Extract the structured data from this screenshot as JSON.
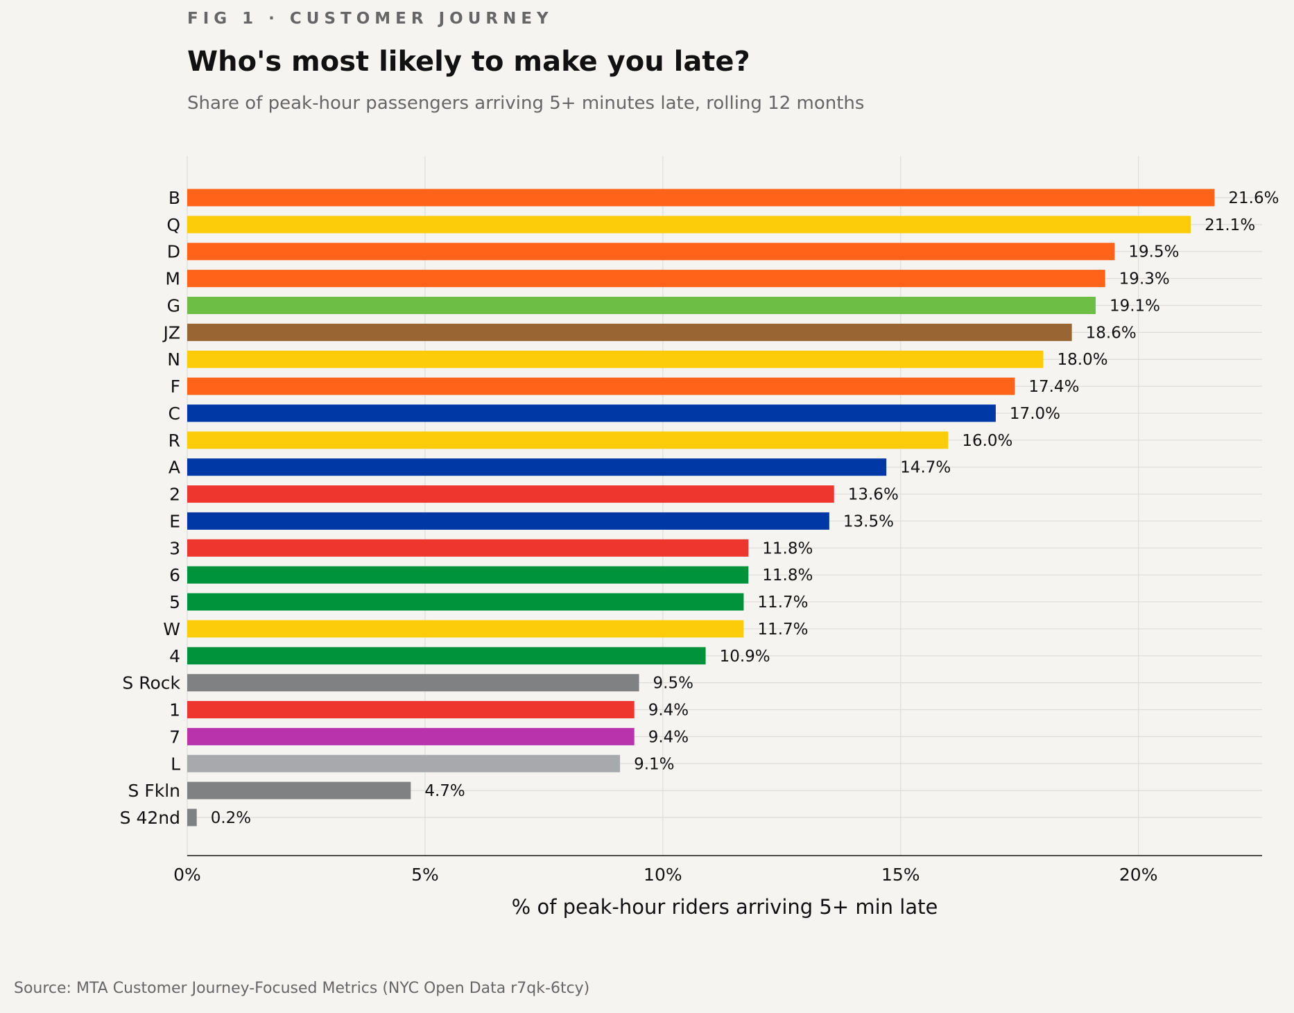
{
  "header": {
    "kicker": "FIG 1 · CUSTOMER JOURNEY",
    "title": "Who's most likely to make you late?",
    "subtitle": "Share of peak-hour passengers arriving 5+ minutes late, rolling 12 months"
  },
  "footer": {
    "source": "Source: MTA Customer Journey-Focused Metrics (NYC Open Data r7qk-6tcy)"
  },
  "chart_data": {
    "type": "bar",
    "orientation": "horizontal",
    "title": "Who's most likely to make you late?",
    "subtitle": "Share of peak-hour passengers arriving 5+ minutes late, rolling 12 months",
    "xlabel": "% of peak-hour riders arriving 5+ min late",
    "ylabel": "",
    "xlim": [
      0,
      22.6
    ],
    "x_ticks": [
      0,
      5,
      10,
      15,
      20
    ],
    "x_tick_labels": [
      "0%",
      "5%",
      "10%",
      "15%",
      "20%"
    ],
    "grid": "on",
    "categories": [
      "B",
      "Q",
      "D",
      "M",
      "G",
      "JZ",
      "N",
      "F",
      "C",
      "R",
      "A",
      "2",
      "E",
      "3",
      "6",
      "5",
      "W",
      "4",
      "S Rock",
      "1",
      "7",
      "L",
      "S Fkln",
      "S 42nd"
    ],
    "values": [
      21.6,
      21.1,
      19.5,
      19.3,
      19.1,
      18.6,
      18.0,
      17.4,
      17.0,
      16.0,
      14.7,
      13.6,
      13.5,
      11.8,
      11.8,
      11.7,
      11.7,
      10.9,
      9.5,
      9.4,
      9.4,
      9.1,
      4.7,
      0.2
    ],
    "value_labels": [
      "21.6%",
      "21.1%",
      "19.5%",
      "19.3%",
      "19.1%",
      "18.6%",
      "18.0%",
      "17.4%",
      "17.0%",
      "16.0%",
      "14.7%",
      "13.6%",
      "13.5%",
      "11.8%",
      "11.8%",
      "11.7%",
      "11.7%",
      "10.9%",
      "9.5%",
      "9.4%",
      "9.4%",
      "9.1%",
      "4.7%",
      "0.2%"
    ],
    "colors": [
      "#ff6319",
      "#fccc0a",
      "#ff6319",
      "#ff6319",
      "#6cbe45",
      "#996633",
      "#fccc0a",
      "#ff6319",
      "#0039a6",
      "#fccc0a",
      "#0039a6",
      "#ee352e",
      "#0039a6",
      "#ee352e",
      "#00933c",
      "#00933c",
      "#fccc0a",
      "#00933c",
      "#808183",
      "#ee352e",
      "#b933ad",
      "#a7a9ac",
      "#808183",
      "#808183"
    ]
  }
}
